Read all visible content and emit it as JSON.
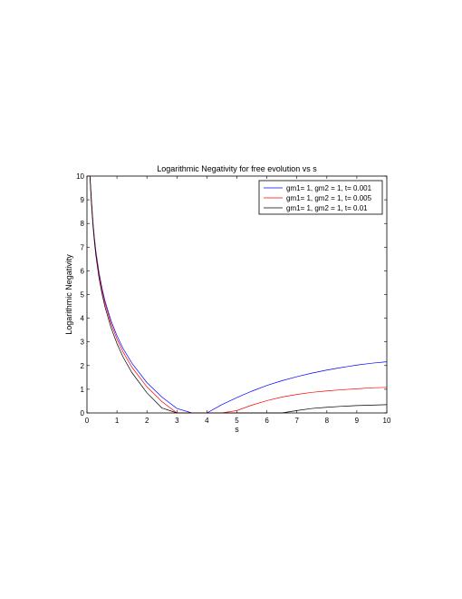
{
  "chart_data": {
    "type": "line",
    "title": "Logarithmic Negativity for free evolution vs s",
    "xlabel": "s",
    "ylabel": "Logarithmic Negativity",
    "xlim": [
      0,
      10
    ],
    "ylim": [
      0,
      10
    ],
    "xticks": [
      "0",
      "1",
      "2",
      "3",
      "4",
      "5",
      "6",
      "7",
      "8",
      "9",
      "10"
    ],
    "yticks": [
      "0",
      "1",
      "2",
      "3",
      "4",
      "5",
      "6",
      "7",
      "8",
      "9",
      "10"
    ],
    "grid": false,
    "legend_position": "top-right",
    "x": [
      0.1,
      0.15,
      0.2,
      0.25,
      0.3,
      0.4,
      0.5,
      0.6,
      0.8,
      1,
      1.2,
      1.5,
      2,
      2.5,
      3,
      3.5,
      3.75,
      4,
      4.5,
      5,
      5.5,
      6,
      6.5,
      7,
      7.5,
      8,
      8.5,
      9,
      9.5,
      10
    ],
    "series": [
      {
        "name": "gm1= 1, gm2 = 1, t= 0.001",
        "color": "#0000ff",
        "values": [
          10,
          8.96,
          8.06,
          7.37,
          6.81,
          5.94,
          5.28,
          4.74,
          3.9,
          3.26,
          2.73,
          2.1,
          1.28,
          0.67,
          0.19,
          0,
          0,
          0,
          0.35,
          0.65,
          0.92,
          1.16,
          1.36,
          1.53,
          1.68,
          1.81,
          1.92,
          2.02,
          2.1,
          2.16
        ]
      },
      {
        "name": "gm1= 1, gm2 = 1, t= 0.005",
        "color": "#ff0000",
        "values": [
          10,
          8.9,
          8.0,
          7.3,
          6.73,
          5.85,
          5.18,
          4.63,
          3.78,
          3.12,
          2.58,
          1.93,
          1.1,
          0.48,
          0,
          0,
          0,
          0,
          0,
          0.1,
          0.33,
          0.52,
          0.67,
          0.78,
          0.87,
          0.93,
          0.98,
          1.02,
          1.06,
          1.08
        ]
      },
      {
        "name": "gm1= 1, gm2 = 1, t= 0.01",
        "color": "#000000",
        "values": [
          10,
          8.82,
          7.91,
          7.2,
          6.62,
          5.72,
          5.04,
          4.48,
          3.61,
          2.93,
          2.37,
          1.7,
          0.85,
          0.21,
          0,
          0,
          0,
          0,
          0,
          0,
          0,
          0,
          0,
          0.1,
          0.19,
          0.24,
          0.28,
          0.31,
          0.33,
          0.35
        ]
      }
    ]
  }
}
